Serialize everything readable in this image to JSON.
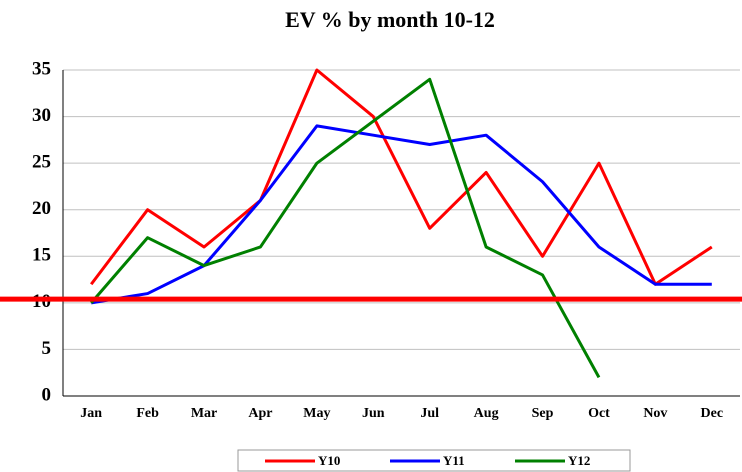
{
  "chart_data": {
    "type": "line",
    "title": "EV % by month 10-12",
    "categories": [
      "Jan",
      "Feb",
      "Mar",
      "Apr",
      "May",
      "Jun",
      "Jul",
      "Aug",
      "Sep",
      "Oct",
      "Nov",
      "Dec"
    ],
    "series": [
      {
        "name": "Y10",
        "color": "#ff0000",
        "values": [
          12,
          20,
          16,
          21,
          35,
          30,
          18,
          24,
          15,
          25,
          12,
          16
        ]
      },
      {
        "name": "Y11",
        "color": "#0000ff",
        "values": [
          10,
          11,
          14,
          21,
          29,
          28,
          27,
          28,
          23,
          16,
          12,
          12
        ]
      },
      {
        "name": "Y12",
        "color": "#008000",
        "values": [
          10,
          17,
          14,
          16,
          25,
          29.5,
          34,
          16,
          13,
          2,
          null,
          null
        ]
      }
    ],
    "reference_line": {
      "value": 10.4,
      "color": "#ff0000"
    },
    "ylim": [
      0,
      35
    ],
    "yticks": [
      0,
      5,
      10,
      15,
      20,
      25,
      30,
      35
    ],
    "grid": true,
    "legend": "bottom"
  }
}
